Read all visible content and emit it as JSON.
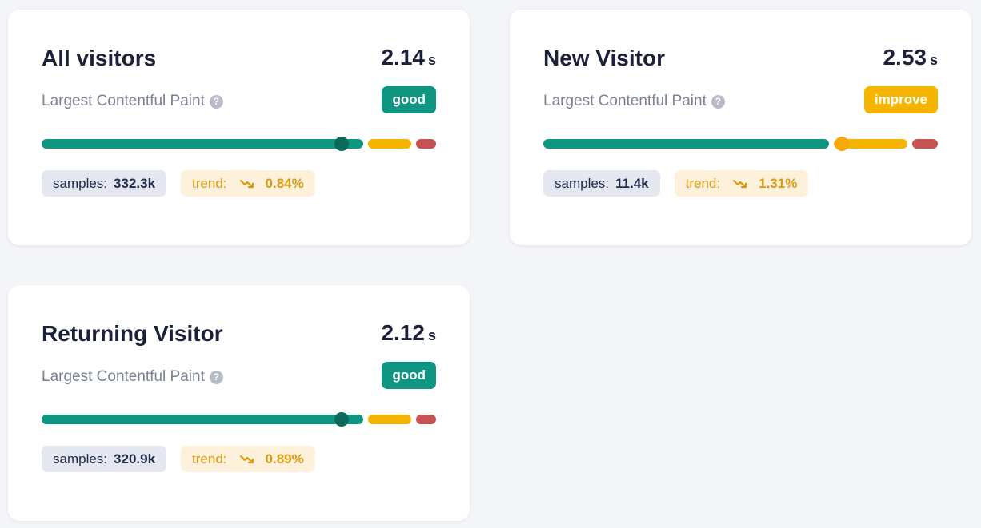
{
  "colors": {
    "good": "#0f9682",
    "good_knob": "#0c6a5b",
    "improve": "#f4b400",
    "improve_knob": "#f7a80a",
    "poor": "#c65252"
  },
  "cards": [
    {
      "title": "All visitors",
      "value": "2.14",
      "unit": "s",
      "metric": "Largest Contentful Paint",
      "help": "?",
      "status": "good",
      "position": 0.76,
      "samples_label": "samples:",
      "samples": "332.3k",
      "trend_label": "trend:",
      "trend_icon": "trending-down-icon",
      "trend": "0.84%"
    },
    {
      "title": "New Visitor",
      "value": "2.53",
      "unit": "s",
      "metric": "Largest Contentful Paint",
      "help": "?",
      "status": "improve",
      "position": 0.76,
      "samples_label": "samples:",
      "samples": "11.4k",
      "trend_label": "trend:",
      "trend_icon": "trending-down-icon",
      "trend": "1.31%"
    },
    {
      "title": "Returning Visitor",
      "value": "2.12",
      "unit": "s",
      "metric": "Largest Contentful Paint",
      "help": "?",
      "status": "good",
      "position": 0.76,
      "samples_label": "samples:",
      "samples": "320.9k",
      "trend_label": "trend:",
      "trend_icon": "trending-down-icon",
      "trend": "0.89%"
    }
  ]
}
